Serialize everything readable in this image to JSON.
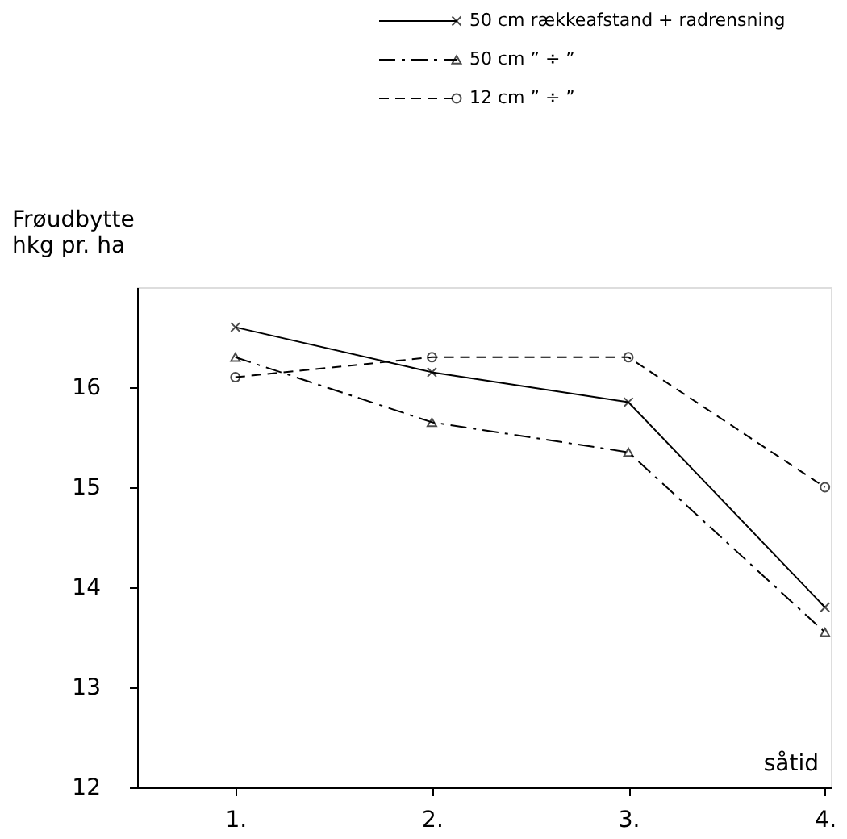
{
  "chart_data": {
    "type": "line",
    "ylabel": "Frøudbytte\nhkg pr. ha",
    "xlabel": "såtid",
    "categories": [
      "1.",
      "2.",
      "3.",
      "4."
    ],
    "series": [
      {
        "name": "50 cm rækkeafstand + radrensning",
        "color": "#000000",
        "marker": "cross",
        "line_style": "solid",
        "values": [
          16.6,
          16.15,
          15.85,
          13.8
        ]
      },
      {
        "name": "50 cm    ”    ÷    ”",
        "color": "#000000",
        "marker": "triangle",
        "line_style": "dashdot",
        "values": [
          16.3,
          15.65,
          15.35,
          13.55
        ]
      },
      {
        "name": "12 cm    ”    ÷    ”",
        "color": "#000000",
        "marker": "circle",
        "line_style": "dashed",
        "values": [
          16.1,
          16.3,
          16.3,
          15.0
        ]
      }
    ],
    "ylim": [
      12,
      17
    ],
    "yticks": [
      12,
      13,
      14,
      15,
      16
    ],
    "grid": false,
    "legend": "top right"
  }
}
